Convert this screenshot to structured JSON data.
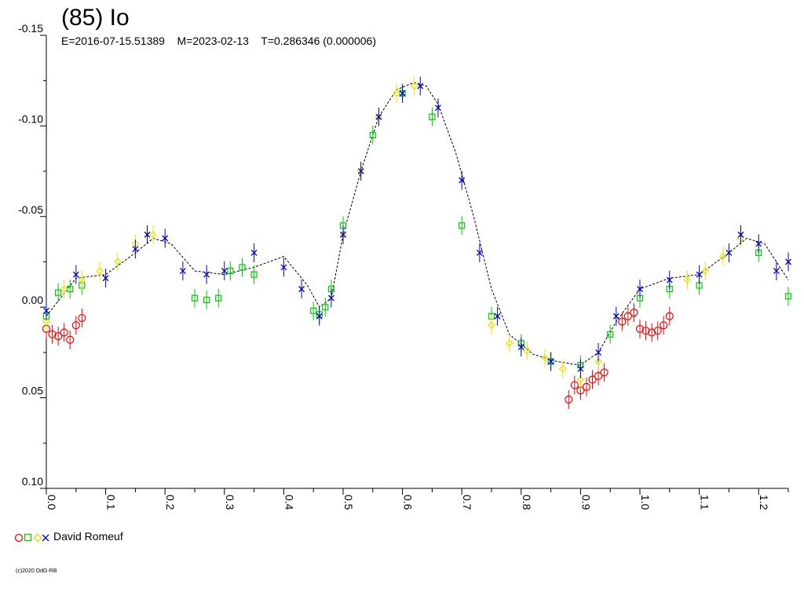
{
  "chart_data": {
    "type": "scatter",
    "title": "(85) Io",
    "subtitle": "E=2016-07-15.51389    M=2023-02-13    T=0.286346 (0.000006)",
    "xlabel": "",
    "ylabel": "",
    "xlim": [
      0.0,
      1.25
    ],
    "ylim": [
      -0.15,
      0.1
    ],
    "y_inverted": true,
    "x_ticks": [
      "0.0",
      "0.1",
      "0.2",
      "0.3",
      "0.4",
      "0.5",
      "0.6",
      "0.7",
      "0.8",
      "0.9",
      "1.0",
      "1.1",
      "1.2"
    ],
    "y_ticks": [
      "-0.15",
      "-0.10",
      "-0.05",
      "0.00",
      "0.05",
      "0.10"
    ],
    "grid": false,
    "legend_position": "bottom-left",
    "legend_label": "David Romeuf",
    "series": [
      {
        "name": "",
        "marker": "circle",
        "color": "#ff0000",
        "x": [
          0.0,
          0.01,
          0.02,
          0.03,
          0.04,
          0.05,
          0.06,
          0.88,
          0.89,
          0.9,
          0.91,
          0.92,
          0.93,
          0.94,
          0.97,
          0.98,
          0.99,
          1.0,
          1.01,
          1.02,
          1.03,
          1.04,
          1.05
        ],
        "y": [
          0.012,
          0.015,
          0.016,
          0.014,
          0.018,
          0.01,
          0.006,
          0.051,
          0.043,
          0.046,
          0.044,
          0.04,
          0.038,
          0.036,
          0.008,
          0.005,
          0.003,
          0.012,
          0.013,
          0.014,
          0.013,
          0.01,
          0.005
        ]
      },
      {
        "name": "",
        "marker": "square",
        "color": "#00cc00",
        "x": [
          0.0,
          0.02,
          0.04,
          0.06,
          0.25,
          0.27,
          0.29,
          0.31,
          0.33,
          0.35,
          0.45,
          0.46,
          0.47,
          0.48,
          0.5,
          0.55,
          0.6,
          0.65,
          0.7,
          0.75,
          0.8,
          0.85,
          0.9,
          0.95,
          1.0,
          1.05,
          1.1,
          1.2,
          1.25
        ],
        "y": [
          0.005,
          -0.008,
          -0.01,
          -0.012,
          -0.005,
          -0.004,
          -0.005,
          -0.02,
          -0.022,
          -0.018,
          0.002,
          0.004,
          0.0,
          -0.01,
          -0.045,
          -0.095,
          -0.118,
          -0.105,
          -0.045,
          0.005,
          0.02,
          0.03,
          0.032,
          0.015,
          -0.005,
          -0.01,
          -0.012,
          -0.03,
          -0.006
        ]
      },
      {
        "name": "",
        "marker": "diamond",
        "color": "#ffff00",
        "x": [
          0.0,
          0.03,
          0.06,
          0.09,
          0.12,
          0.15,
          0.18,
          0.5,
          0.53,
          0.56,
          0.59,
          0.62,
          0.75,
          0.78,
          0.81,
          0.84,
          0.87,
          0.9,
          0.93,
          1.08,
          1.11,
          1.14,
          1.17
        ],
        "y": [
          0.008,
          -0.01,
          -0.015,
          -0.02,
          -0.025,
          -0.035,
          -0.04,
          -0.04,
          -0.075,
          -0.105,
          -0.118,
          -0.122,
          0.01,
          0.02,
          0.024,
          0.028,
          0.034,
          0.04,
          0.03,
          -0.015,
          -0.02,
          -0.028,
          -0.038
        ]
      },
      {
        "name": "",
        "marker": "cross",
        "color": "#0000cc",
        "x": [
          0.0,
          0.05,
          0.1,
          0.15,
          0.17,
          0.2,
          0.23,
          0.27,
          0.3,
          0.35,
          0.4,
          0.43,
          0.46,
          0.48,
          0.5,
          0.53,
          0.56,
          0.6,
          0.63,
          0.66,
          0.7,
          0.73,
          0.76,
          0.8,
          0.85,
          0.9,
          0.93,
          0.96,
          1.0,
          1.05,
          1.1,
          1.15,
          1.17,
          1.2,
          1.23,
          1.25
        ],
        "y": [
          0.002,
          -0.018,
          -0.016,
          -0.032,
          -0.04,
          -0.038,
          -0.02,
          -0.018,
          -0.02,
          -0.03,
          -0.022,
          -0.01,
          0.005,
          -0.005,
          -0.04,
          -0.075,
          -0.105,
          -0.118,
          -0.122,
          -0.11,
          -0.07,
          -0.03,
          0.005,
          0.022,
          0.03,
          0.034,
          0.025,
          0.005,
          -0.01,
          -0.015,
          -0.018,
          -0.03,
          -0.04,
          -0.035,
          -0.02,
          -0.025
        ]
      }
    ],
    "model_curve": {
      "x": [
        0.0,
        0.05,
        0.1,
        0.15,
        0.18,
        0.21,
        0.25,
        0.3,
        0.35,
        0.4,
        0.44,
        0.46,
        0.48,
        0.5,
        0.53,
        0.56,
        0.59,
        0.62,
        0.64,
        0.66,
        0.69,
        0.72,
        0.75,
        0.78,
        0.82,
        0.86,
        0.9,
        0.93,
        0.96,
        1.0,
        1.05,
        1.1,
        1.15,
        1.18,
        1.21,
        1.25
      ],
      "y": [
        0.005,
        -0.016,
        -0.018,
        -0.03,
        -0.038,
        -0.035,
        -0.02,
        -0.018,
        -0.022,
        -0.028,
        -0.012,
        0.0,
        -0.005,
        -0.04,
        -0.075,
        -0.105,
        -0.12,
        -0.124,
        -0.122,
        -0.112,
        -0.085,
        -0.05,
        -0.01,
        0.015,
        0.026,
        0.03,
        0.032,
        0.025,
        0.008,
        -0.01,
        -0.016,
        -0.018,
        -0.03,
        -0.038,
        -0.035,
        -0.015
      ]
    }
  },
  "footer": {
    "copyright": "(c)2020 OdG-RB"
  }
}
